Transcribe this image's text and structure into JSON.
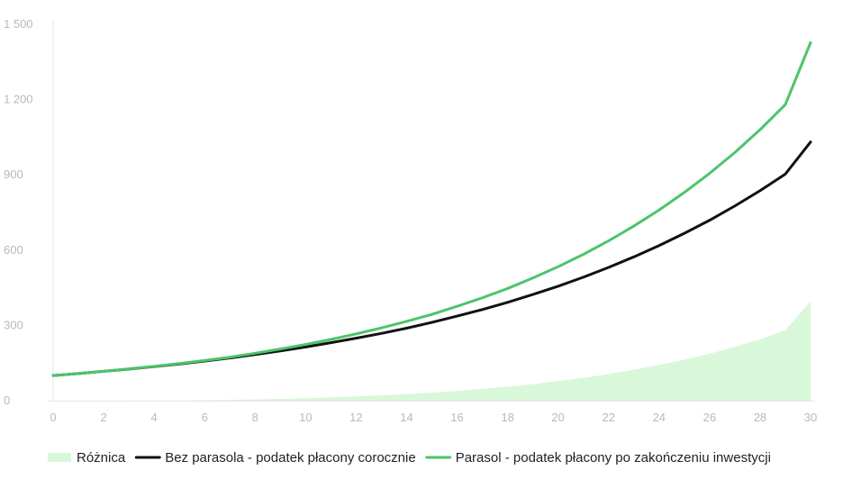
{
  "chart_data": {
    "type": "line",
    "title": "",
    "xlabel": "",
    "ylabel": "",
    "x": [
      0,
      1,
      2,
      3,
      4,
      5,
      6,
      7,
      8,
      9,
      10,
      11,
      12,
      13,
      14,
      15,
      16,
      17,
      18,
      19,
      20,
      21,
      22,
      23,
      24,
      25,
      26,
      27,
      28,
      29,
      30
    ],
    "xlim": [
      0,
      30
    ],
    "ylim": [
      0,
      1500
    ],
    "xticks": [
      0,
      2,
      4,
      6,
      8,
      10,
      12,
      14,
      16,
      18,
      20,
      22,
      24,
      26,
      28,
      30
    ],
    "yticks": [
      {
        "value": 0,
        "label": "0"
      },
      {
        "value": 300,
        "label": "300"
      },
      {
        "value": 600,
        "label": "600"
      },
      {
        "value": 900,
        "label": "900"
      },
      {
        "value": 1200,
        "label": "1 200"
      },
      {
        "value": 1500,
        "label": "1 500"
      }
    ],
    "grid": false,
    "legend_position": "bottom",
    "series": [
      {
        "name": "Różnica",
        "kind": "area",
        "color": "#d9f7d9",
        "values": [
          0,
          0,
          0,
          0,
          1,
          1,
          2,
          3,
          5,
          7,
          10,
          13,
          17,
          21,
          26,
          32,
          39,
          47,
          56,
          66,
          78,
          91,
          106,
          123,
          142,
          163,
          187,
          214,
          245,
          280,
          396
        ]
      },
      {
        "name": "Bez parasola - podatek płacony corocznie",
        "kind": "line",
        "color": "#111111",
        "values": [
          100,
          108,
          117,
          126,
          136,
          146,
          158,
          170,
          184,
          198,
          214,
          231,
          249,
          268,
          289,
          312,
          337,
          363,
          392,
          423,
          456,
          492,
          531,
          573,
          618,
          667,
          719,
          776,
          837,
          903,
          1031
        ]
      },
      {
        "name": "Parasol - podatek płacony po zakończeniu inwestycji",
        "kind": "line",
        "color": "#4cc46a",
        "values": [
          100,
          108,
          117,
          127,
          137,
          148,
          160,
          173,
          189,
          206,
          224,
          244,
          266,
          290,
          316,
          344,
          376,
          410,
          447,
          489,
          534,
          583,
          637,
          696,
          760,
          830,
          906,
          989,
          1080,
          1180,
          1427
        ]
      }
    ]
  }
}
